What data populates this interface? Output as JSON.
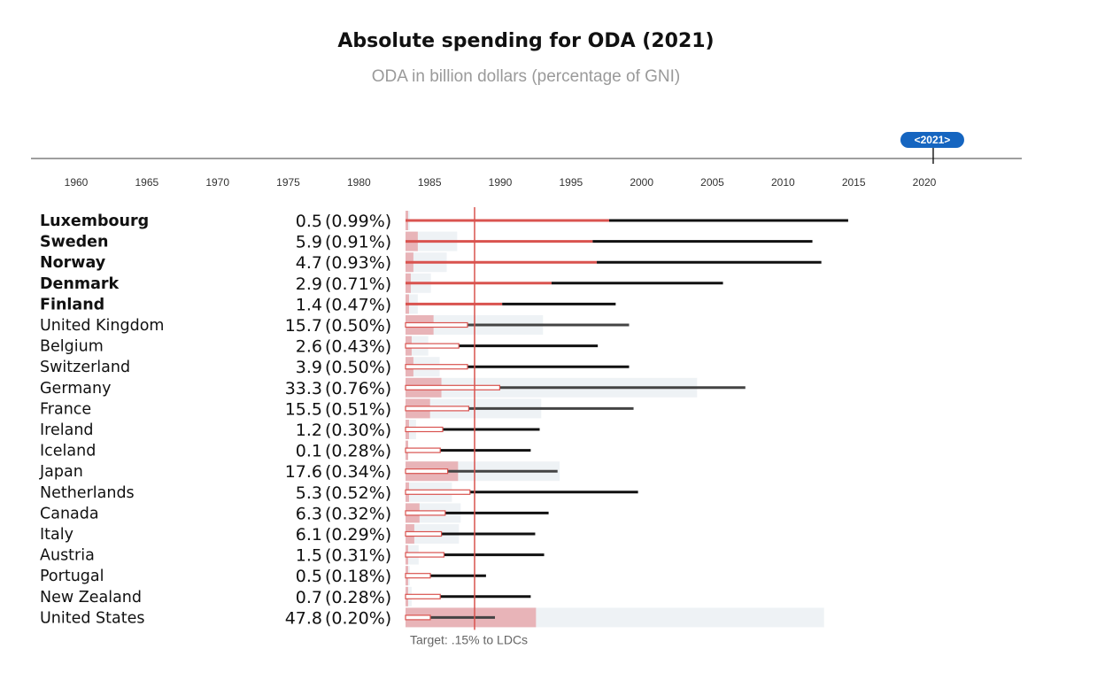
{
  "title": "Absolute spending for ODA (2021)",
  "subtitle": "ODA in billion dollars (percentage of GNI)",
  "colors": {
    "accent_red": "#d9534f",
    "bar_pink": "#e8b4b8",
    "track_gray": "#eef2f5",
    "line_dark": "#111111",
    "line_gray": "#444444",
    "badge_blue": "#1565c0",
    "target_red": "#d9534f"
  },
  "timeline": {
    "selected_label": "<2021>",
    "selected_year": 2021,
    "ticks": [
      "1960",
      "1965",
      "1970",
      "1975",
      "1980",
      "1985",
      "1990",
      "1995",
      "2000",
      "2005",
      "2010",
      "2015",
      "2020"
    ]
  },
  "target_label": "Target: .15% to LDCs",
  "chart_data": {
    "type": "bar",
    "title": "Absolute spending for ODA (2021)",
    "subtitle": "ODA in billion dollars (percentage of GNI)",
    "x_axis": {
      "kind": "year",
      "min": 1960,
      "max": 2020,
      "ticks": [
        1960,
        1965,
        1970,
        1975,
        1980,
        1985,
        1990,
        1995,
        2000,
        2005,
        2010,
        2015,
        2020
      ]
    },
    "selected_year": 2021,
    "target_label": "Target: .15% to LDCs",
    "value_scale_max": 50,
    "rows": [
      {
        "country": "Luxembourg",
        "bold": true,
        "oda_billion": 0.5,
        "value_text": "0.5",
        "gni_pct_text": "(0.99%)",
        "range_value": 0.1,
        "ldc_value": 0.2,
        "line_pct": 0.99,
        "line_style": "red"
      },
      {
        "country": "Sweden",
        "bold": true,
        "oda_billion": 5.9,
        "value_text": "5.9",
        "gni_pct_text": "(0.91%)",
        "range_value": 1.3,
        "ldc_value": 1.4,
        "line_pct": 0.91,
        "line_style": "red"
      },
      {
        "country": "Norway",
        "bold": true,
        "oda_billion": 4.7,
        "value_text": "4.7",
        "gni_pct_text": "(0.93%)",
        "range_value": 1.0,
        "ldc_value": 0.9,
        "line_pct": 0.93,
        "line_style": "red"
      },
      {
        "country": "Denmark",
        "bold": true,
        "oda_billion": 2.9,
        "value_text": "2.9",
        "gni_pct_text": "(0.71%)",
        "range_value": 0.6,
        "ldc_value": 0.6,
        "line_pct": 0.71,
        "line_style": "red"
      },
      {
        "country": "Finland",
        "bold": true,
        "oda_billion": 1.4,
        "value_text": "1.4",
        "gni_pct_text": "(0.47%)",
        "range_value": 0.3,
        "ldc_value": 0.4,
        "line_pct": 0.47,
        "line_style": "red"
      },
      {
        "country": "United Kingdom",
        "bold": false,
        "oda_billion": 15.7,
        "value_text": "15.7",
        "gni_pct_text": "(0.50%)",
        "range_value": 3.3,
        "ldc_value": 3.2,
        "line_pct": 0.5,
        "line_style": "outline"
      },
      {
        "country": "Belgium",
        "bold": false,
        "oda_billion": 2.6,
        "value_text": "2.6",
        "gni_pct_text": "(0.43%)",
        "range_value": 0.6,
        "ldc_value": 0.7,
        "line_pct": 0.43,
        "line_style": "outline"
      },
      {
        "country": "Switzerland",
        "bold": false,
        "oda_billion": 3.9,
        "value_text": "3.9",
        "gni_pct_text": "(0.50%)",
        "range_value": 0.8,
        "ldc_value": 0.9,
        "line_pct": 0.5,
        "line_style": "outline"
      },
      {
        "country": "Germany",
        "bold": false,
        "oda_billion": 33.3,
        "value_text": "33.3",
        "gni_pct_text": "(0.76%)",
        "range_value": 7.0,
        "ldc_value": 4.1,
        "line_pct": 0.76,
        "line_style": "outline"
      },
      {
        "country": "France",
        "bold": false,
        "oda_billion": 15.5,
        "value_text": "15.5",
        "gni_pct_text": "(0.51%)",
        "range_value": 3.3,
        "ldc_value": 2.8,
        "line_pct": 0.51,
        "line_style": "outline"
      },
      {
        "country": "Ireland",
        "bold": false,
        "oda_billion": 1.2,
        "value_text": "1.2",
        "gni_pct_text": "(0.30%)",
        "range_value": 0.3,
        "ldc_value": 0.4,
        "line_pct": 0.3,
        "line_style": "outline"
      },
      {
        "country": "Iceland",
        "bold": false,
        "oda_billion": 0.1,
        "value_text": "0.1",
        "gni_pct_text": "(0.28%)",
        "range_value": 0.02,
        "ldc_value": 0.03,
        "line_pct": 0.28,
        "line_style": "outline"
      },
      {
        "country": "Japan",
        "bold": false,
        "oda_billion": 17.6,
        "value_text": "17.6",
        "gni_pct_text": "(0.34%)",
        "range_value": 3.7,
        "ldc_value": 6.0,
        "line_pct": 0.34,
        "line_style": "outline"
      },
      {
        "country": "Netherlands",
        "bold": false,
        "oda_billion": 5.3,
        "value_text": "5.3",
        "gni_pct_text": "(0.52%)",
        "range_value": 1.1,
        "ldc_value": 0.4,
        "line_pct": 0.52,
        "line_style": "outline"
      },
      {
        "country": "Canada",
        "bold": false,
        "oda_billion": 6.3,
        "value_text": "6.3",
        "gni_pct_text": "(0.32%)",
        "range_value": 1.3,
        "ldc_value": 1.6,
        "line_pct": 0.32,
        "line_style": "outline"
      },
      {
        "country": "Italy",
        "bold": false,
        "oda_billion": 6.1,
        "value_text": "6.1",
        "gni_pct_text": "(0.29%)",
        "range_value": 1.3,
        "ldc_value": 1.0,
        "line_pct": 0.29,
        "line_style": "outline"
      },
      {
        "country": "Austria",
        "bold": false,
        "oda_billion": 1.5,
        "value_text": "1.5",
        "gni_pct_text": "(0.31%)",
        "range_value": 0.3,
        "ldc_value": 0.2,
        "line_pct": 0.31,
        "line_style": "outline"
      },
      {
        "country": "Portugal",
        "bold": false,
        "oda_billion": 0.5,
        "value_text": "0.5",
        "gni_pct_text": "(0.18%)",
        "range_value": 0.1,
        "ldc_value": 0.1,
        "line_pct": 0.18,
        "line_style": "outline"
      },
      {
        "country": "New Zealand",
        "bold": false,
        "oda_billion": 0.7,
        "value_text": "0.7",
        "gni_pct_text": "(0.28%)",
        "range_value": 0.1,
        "ldc_value": 0.1,
        "line_pct": 0.28,
        "line_style": "outline"
      },
      {
        "country": "United States",
        "bold": false,
        "oda_billion": 47.8,
        "value_text": "47.8",
        "gni_pct_text": "(0.20%)",
        "range_value": 10.0,
        "ldc_value": 14.9,
        "line_pct": 0.2,
        "line_style": "outline"
      }
    ]
  }
}
